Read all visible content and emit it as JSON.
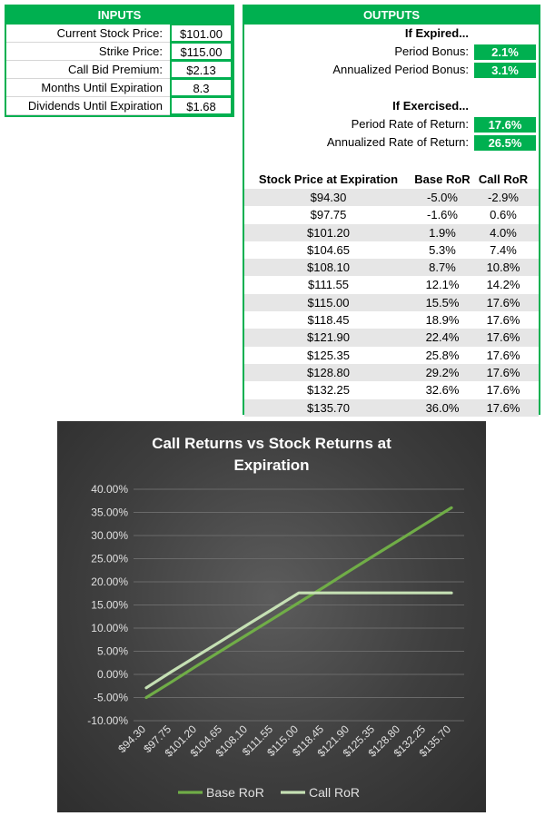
{
  "inputs": {
    "header": "INPUTS",
    "rows": [
      {
        "label": "Current Stock Price:",
        "value": "$101.00"
      },
      {
        "label": "Strike Price:",
        "value": "$115.00"
      },
      {
        "label": "Call Bid Premium:",
        "value": "$2.13"
      },
      {
        "label": "Months Until Expiration",
        "value": "8.3"
      },
      {
        "label": "Dividends Until Expiration",
        "value": "$1.68"
      }
    ]
  },
  "outputs": {
    "header": "OUTPUTS",
    "if_expired": "If Expired...",
    "period_bonus_label": "Period Bonus:",
    "period_bonus_value": "2.1%",
    "annualized_bonus_label": "Annualized Period Bonus:",
    "annualized_bonus_value": "3.1%",
    "if_exercised": "If Exercised...",
    "period_ror_label": "Period Rate of Return:",
    "period_ror_value": "17.6%",
    "annualized_ror_label": "Annualized Rate of Return:",
    "annualized_ror_value": "26.5%",
    "table": {
      "headers": [
        "Stock Price at Expiration",
        "Base RoR",
        "Call RoR"
      ],
      "rows": [
        [
          "$94.30",
          "-5.0%",
          "-2.9%"
        ],
        [
          "$97.75",
          "-1.6%",
          "0.6%"
        ],
        [
          "$101.20",
          "1.9%",
          "4.0%"
        ],
        [
          "$104.65",
          "5.3%",
          "7.4%"
        ],
        [
          "$108.10",
          "8.7%",
          "10.8%"
        ],
        [
          "$111.55",
          "12.1%",
          "14.2%"
        ],
        [
          "$115.00",
          "15.5%",
          "17.6%"
        ],
        [
          "$118.45",
          "18.9%",
          "17.6%"
        ],
        [
          "$121.90",
          "22.4%",
          "17.6%"
        ],
        [
          "$125.35",
          "25.8%",
          "17.6%"
        ],
        [
          "$128.80",
          "29.2%",
          "17.6%"
        ],
        [
          "$132.25",
          "32.6%",
          "17.6%"
        ],
        [
          "$135.70",
          "36.0%",
          "17.6%"
        ]
      ]
    }
  },
  "colors": {
    "green": "#00b050",
    "base_line": "#70ad47",
    "call_line": "#c5e0b4"
  },
  "chart_data": {
    "type": "line",
    "title": "Call Returns vs Stock Returns at Expiration",
    "title_lines": [
      "Call Returns vs Stock Returns at",
      "Expiration"
    ],
    "categories": [
      "$94.30",
      "$97.75",
      "$101.20",
      "$104.65",
      "$108.10",
      "$111.55",
      "$115.00",
      "$118.45",
      "$121.90",
      "$125.35",
      "$128.80",
      "$132.25",
      "$135.70"
    ],
    "series": [
      {
        "name": "Base RoR",
        "values": [
          -5.0,
          -1.6,
          1.9,
          5.3,
          8.7,
          12.1,
          15.5,
          18.9,
          22.4,
          25.8,
          29.2,
          32.6,
          36.0
        ]
      },
      {
        "name": "Call RoR",
        "values": [
          -2.9,
          0.6,
          4.0,
          7.4,
          10.8,
          14.2,
          17.6,
          17.6,
          17.6,
          17.6,
          17.6,
          17.6,
          17.6
        ]
      }
    ],
    "ylim": [
      -10,
      40
    ],
    "yticks": [
      "40.00%",
      "35.00%",
      "30.00%",
      "25.00%",
      "20.00%",
      "15.00%",
      "10.00%",
      "5.00%",
      "0.00%",
      "-5.00%",
      "-10.00%"
    ],
    "ytick_values": [
      40,
      35,
      30,
      25,
      20,
      15,
      10,
      5,
      0,
      -5,
      -10
    ],
    "grid": true,
    "legend": "bottom"
  }
}
